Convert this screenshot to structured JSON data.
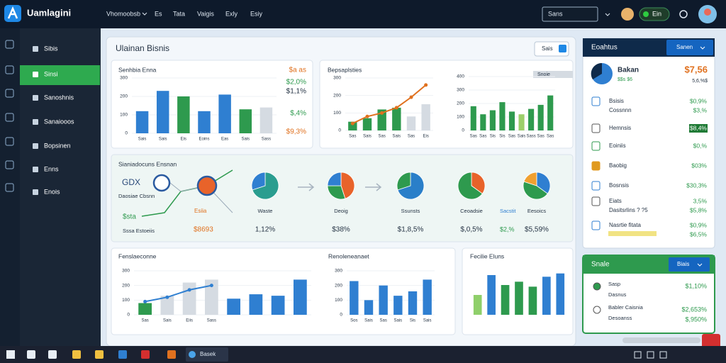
{
  "topbar": {
    "brand": "Uamlagini",
    "nav": [
      "Vhomoobsb",
      "Es",
      "Tata",
      "Vaigis",
      "Exly",
      "Esiy"
    ],
    "search": "Sans",
    "status": "Ein"
  },
  "sidebar": {
    "items": [
      "Sibis",
      "Sinsi",
      "Sanoshnis",
      "Sanaiooos",
      "Bopsinen",
      "Enns",
      "Enois"
    ],
    "active": 1
  },
  "main": {
    "title": "Ulainan Bisnis",
    "button": "Sais"
  },
  "charts": [
    {
      "title": "Senhbia Enna",
      "ylim": [
        0,
        300
      ],
      "yticks": [
        0,
        100,
        200,
        300
      ],
      "categories": [
        "Sais",
        "Sais",
        "Eis",
        "Eoins",
        "Eas",
        "Sais",
        "Sass"
      ],
      "values": [
        120,
        230,
        200,
        120,
        210,
        130,
        140
      ],
      "colors": [
        "#2f7fd1",
        "#2f7fd1",
        "#2e9a4e",
        "#2f7fd1",
        "#2f7fd1",
        "#2e9a4e",
        "#d5dbe2"
      ],
      "notes": [
        {
          "text": "$a as",
          "color": "#e0711f"
        },
        {
          "text": "$2,0%",
          "color": "#2e9a4e"
        },
        {
          "text": "$1,1%",
          "color": "#263445"
        },
        {
          "text": "$,4%",
          "color": "#2e9a4e"
        },
        {
          "text": "$9,3%",
          "color": "#e0711f"
        }
      ]
    },
    {
      "title": "Bepsaplsties",
      "ylim": [
        0,
        300
      ],
      "yticks": [
        0,
        100,
        200,
        300
      ],
      "categories": [
        "Sas",
        "Sais",
        "Sas",
        "Sais",
        "Sas",
        "Eis"
      ],
      "values": [
        50,
        70,
        120,
        130,
        80,
        150
      ],
      "colors": [
        "#2e9a4e",
        "#2e9a4e",
        "#2e9a4e",
        "#2e9a4e",
        "#d5dbe2",
        "#d5dbe2"
      ],
      "line": [
        40,
        80,
        100,
        130,
        190,
        260
      ],
      "line_color": "#e0711f"
    },
    {
      "badge": "Snoie",
      "ylim": [
        0,
        400
      ],
      "yticks": [
        0,
        100,
        200,
        300,
        400
      ],
      "categories": [
        "Sas",
        "Sas",
        "Sis",
        "Sis",
        "Sas",
        "Sais",
        "Sass",
        "Sas",
        "Sas"
      ],
      "values": [
        180,
        120,
        150,
        210,
        140,
        120,
        160,
        190,
        260
      ],
      "colors": [
        "#2e9a4e",
        "#2e9a4e",
        "#2e9a4e",
        "#2e9a4e",
        "#2e9a4e",
        "#9ccf6a",
        "#2e9a4e",
        "#2e9a4e",
        "#2e9a4e"
      ]
    },
    {
      "title": "Fenslaeconne",
      "ylim": [
        0,
        300
      ],
      "yticks": [
        0,
        100,
        200,
        300
      ],
      "categories": [
        "Sas",
        "Sais",
        "Eiis",
        "Sass",
        null,
        null,
        null,
        null
      ],
      "values": [
        80,
        130,
        220,
        240,
        110,
        140,
        130,
        240
      ],
      "colors": [
        "#2e9a4e",
        "#d5dbe2",
        "#d5dbe2",
        "#d5dbe2",
        "#2f7fd1",
        "#2f7fd1",
        "#2f7fd1",
        "#2f7fd1"
      ],
      "line": [
        90,
        120,
        170,
        200,
        null,
        null,
        null,
        null
      ],
      "line_color": "#2f7fd1"
    },
    {
      "title": "Renoleneanaet",
      "ylim": [
        0,
        300
      ],
      "yticks": [
        0,
        100,
        200,
        300
      ],
      "categories": [
        "Sos",
        "Sais",
        "Sas",
        "Sais",
        "Sis",
        "Sais"
      ],
      "values": [
        230,
        100,
        200,
        130,
        160,
        240
      ],
      "colors": [
        "#2f7fd1",
        "#2f7fd1",
        "#2f7fd1",
        "#2f7fd1",
        "#2f7fd1",
        "#2f7fd1"
      ]
    },
    {
      "title": "Fecilie Eluns",
      "ylim": [
        0,
        300
      ],
      "categories": [
        null,
        null,
        null,
        null,
        null,
        null,
        null
      ],
      "values": [
        120,
        240,
        180,
        200,
        170,
        230,
        250
      ],
      "colors": [
        "#8fcf6a",
        "#2f7fd1",
        "#2e9a4e",
        "#2e9a4e",
        "#2e9a4e",
        "#2f7fd1",
        "#2f7fd1"
      ]
    }
  ],
  "flow": {
    "title": "Sianiadocuns Ensnan",
    "texts": [
      {
        "text": "GDX",
        "color": "#2a4a7a"
      },
      {
        "text": "Daosiae Cbsnn",
        "color": "#263445"
      },
      {
        "text": "$sta",
        "color": "#2e9a4e"
      },
      {
        "text": "Sssa Estoeiis",
        "color": "#263445"
      },
      {
        "text": "Esiia",
        "color": "#e0711f"
      },
      {
        "text": "$8693",
        "color": "#e0711f"
      },
      {
        "text": "Sacstit",
        "color": "#2f7fd1"
      },
      {
        "text": "$2,%",
        "color": "#2e9a4e"
      }
    ],
    "pies": [
      {
        "label": "Waste",
        "value": "1,12%",
        "segments": [
          {
            "value": 70,
            "color": "#2a9d8f"
          },
          {
            "value": 30,
            "color": "#2f7fd1"
          }
        ]
      },
      {
        "label": "Deoig",
        "value": "$38%",
        "segments": [
          {
            "value": 45,
            "color": "#e8632a"
          },
          {
            "value": 30,
            "color": "#2e9a4e"
          },
          {
            "value": 25,
            "color": "#2f7fd1"
          }
        ]
      },
      {
        "label": "Ssunsts",
        "value": "$1,8,5%",
        "segments": [
          {
            "value": 70,
            "color": "#2a7fc9"
          },
          {
            "value": 30,
            "color": "#2e9a4e"
          }
        ]
      },
      {
        "label": "Ceoadsie",
        "value": "$,0,5%",
        "segments": [
          {
            "value": 35,
            "color": "#e8632a"
          },
          {
            "value": 65,
            "color": "#2e9a4e"
          }
        ]
      },
      {
        "label": "Eesoics",
        "value": "$5,59%",
        "segments": [
          {
            "value": 35,
            "color": "#2f7fd1"
          },
          {
            "value": 45,
            "color": "#2e9a4e"
          },
          {
            "value": 20,
            "color": "#f0a030"
          }
        ]
      }
    ]
  },
  "panel": {
    "title": "Eoahtus",
    "button": "Sanen",
    "summary": {
      "label": "Bakan",
      "sub": "$$s $6",
      "value": "$7,56",
      "sub_value": "5,6,%$"
    },
    "rows": [
      {
        "label": "Bsisis",
        "sub": "Cossnnn",
        "value": "$0,9%",
        "sub_value": "$3,%",
        "color": "#2f7fd1"
      },
      {
        "label": "Hemnsis",
        "value": "$8,4%",
        "color": "#555",
        "highlight": true
      },
      {
        "label": "Eoiniis",
        "value": "$0,%",
        "color": "#2e9a4e"
      },
      {
        "label": "Baobig",
        "value": "$03%",
        "color": "#e09a20"
      },
      {
        "label": "Bosnsis",
        "value": "$30,3%",
        "color": "#2f7fd1"
      },
      {
        "label": "Eiats",
        "sub": "Dasitsrlins ? ?5",
        "value": "3,5%",
        "sub_value": "$5,8%",
        "color": "#555"
      },
      {
        "label": "Nasrtie fitata",
        "value": "$0,9%",
        "sub_value": "$6,5%",
        "color": "#2f7fd1"
      }
    ]
  },
  "panel2": {
    "title": "Snale",
    "button": "Biais",
    "rows": [
      {
        "label": "Sasp",
        "sub": "Dasnus",
        "value": "$1,10%"
      },
      {
        "label": "Babler Caisnia",
        "sub": "Desoanss",
        "value": "$2,653%",
        "sub_value": "$,950%"
      }
    ]
  },
  "taskbar": {
    "app": "Basek"
  }
}
